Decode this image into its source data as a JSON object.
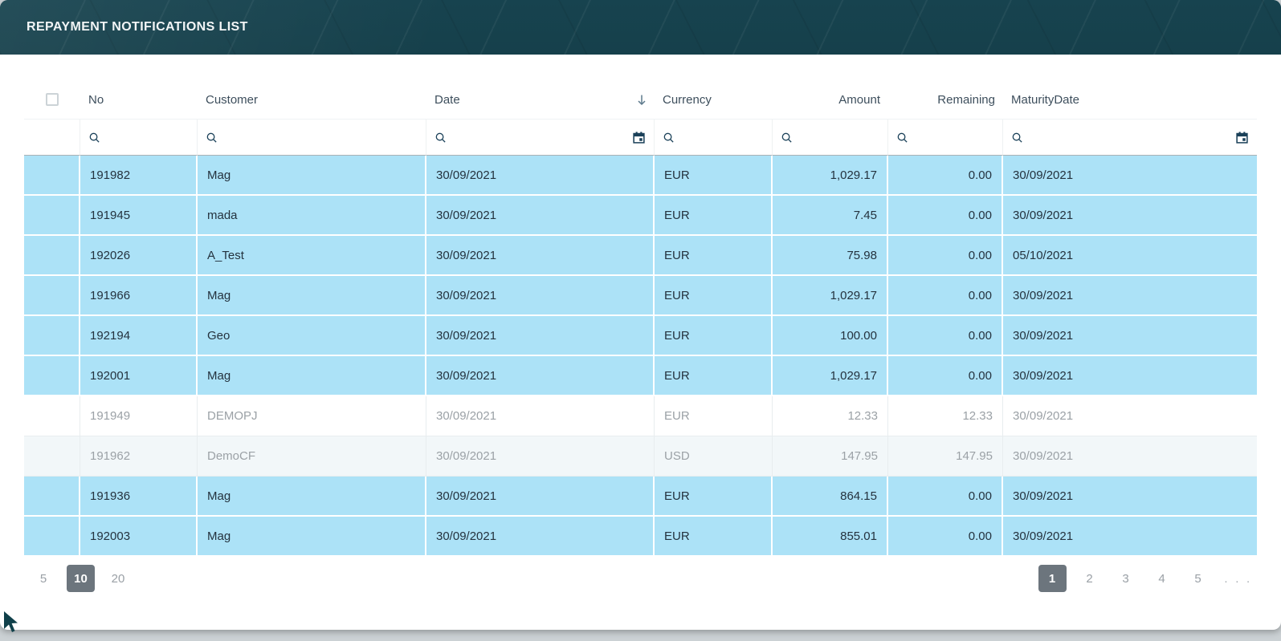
{
  "title": "REPAYMENT NOTIFICATIONS LIST",
  "table": {
    "columns": [
      {
        "key": "no",
        "label": "No",
        "align": "left",
        "filter": "search"
      },
      {
        "key": "customer",
        "label": "Customer",
        "align": "left",
        "filter": "search"
      },
      {
        "key": "date",
        "label": "Date",
        "align": "left",
        "filter": "search+calendar",
        "sorted": "desc"
      },
      {
        "key": "currency",
        "label": "Currency",
        "align": "left",
        "filter": "search"
      },
      {
        "key": "amount",
        "label": "Amount",
        "align": "right",
        "filter": "search"
      },
      {
        "key": "remaining",
        "label": "Remaining",
        "align": "right",
        "filter": "search"
      },
      {
        "key": "maturity",
        "label": "MaturityDate",
        "align": "left",
        "filter": "search+calendar"
      }
    ],
    "filters": {
      "no": "",
      "customer": "",
      "date": "",
      "currency": "",
      "amount": "",
      "remaining": "",
      "maturity": ""
    },
    "sort": {
      "column": "Date",
      "direction": "desc"
    },
    "rows": [
      {
        "no": "191982",
        "customer": "Mag",
        "date": "30/09/2021",
        "currency": "EUR",
        "amount": "1,029.17",
        "remaining": "0.00",
        "maturity": "30/09/2021",
        "state": "paid"
      },
      {
        "no": "191945",
        "customer": "mada",
        "date": "30/09/2021",
        "currency": "EUR",
        "amount": "7.45",
        "remaining": "0.00",
        "maturity": "30/09/2021",
        "state": "paid"
      },
      {
        "no": "192026",
        "customer": "A_Test",
        "date": "30/09/2021",
        "currency": "EUR",
        "amount": "75.98",
        "remaining": "0.00",
        "maturity": "05/10/2021",
        "state": "paid"
      },
      {
        "no": "191966",
        "customer": "Mag",
        "date": "30/09/2021",
        "currency": "EUR",
        "amount": "1,029.17",
        "remaining": "0.00",
        "maturity": "30/09/2021",
        "state": "paid"
      },
      {
        "no": "192194",
        "customer": "Geo",
        "date": "30/09/2021",
        "currency": "EUR",
        "amount": "100.00",
        "remaining": "0.00",
        "maturity": "30/09/2021",
        "state": "paid"
      },
      {
        "no": "192001",
        "customer": "Mag",
        "date": "30/09/2021",
        "currency": "EUR",
        "amount": "1,029.17",
        "remaining": "0.00",
        "maturity": "30/09/2021",
        "state": "paid"
      },
      {
        "no": "191949",
        "customer": "DEMOPJ",
        "date": "30/09/2021",
        "currency": "EUR",
        "amount": "12.33",
        "remaining": "12.33",
        "maturity": "30/09/2021",
        "state": "open"
      },
      {
        "no": "191962",
        "customer": "DemoCF",
        "date": "30/09/2021",
        "currency": "USD",
        "amount": "147.95",
        "remaining": "147.95",
        "maturity": "30/09/2021",
        "state": "open-alt"
      },
      {
        "no": "191936",
        "customer": "Mag",
        "date": "30/09/2021",
        "currency": "EUR",
        "amount": "864.15",
        "remaining": "0.00",
        "maturity": "30/09/2021",
        "state": "paid"
      },
      {
        "no": "192003",
        "customer": "Mag",
        "date": "30/09/2021",
        "currency": "EUR",
        "amount": "855.01",
        "remaining": "0.00",
        "maturity": "30/09/2021",
        "state": "paid"
      }
    ]
  },
  "pagination": {
    "page_sizes": [
      "5",
      "10",
      "20"
    ],
    "selected_page_size": "10",
    "pages": [
      "1",
      "2",
      "3",
      "4",
      "5"
    ],
    "selected_page": "1",
    "ellipsis": ". . ."
  },
  "icons": {
    "search": "magnifier",
    "calendar": "calendar",
    "sort_desc": "down-arrow",
    "select": "empty-checkbox"
  },
  "colors": {
    "header_bg": "#17434f",
    "row_highlight": "#ace2f7",
    "row_muted_alt": "#f2f7f9",
    "text": "#24323e",
    "muted_text": "#9ba1a6",
    "column_header_text": "#3d4e5c",
    "icon": "#1b4159",
    "selected_button_bg": "#6c757d",
    "page_background": "#cbd1d4"
  }
}
